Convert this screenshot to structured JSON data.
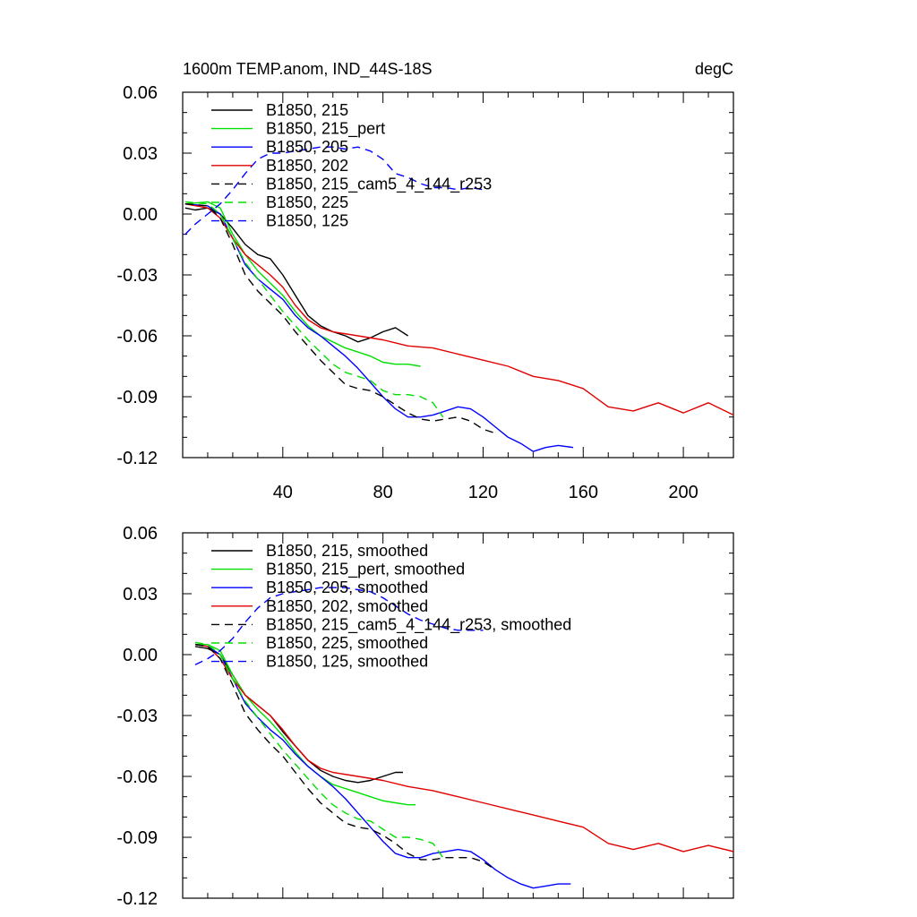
{
  "chart_data": [
    {
      "type": "line",
      "title": "1600m TEMP.anom, IND_44S-18S",
      "units": "degC",
      "xlabel": "",
      "ylabel": "",
      "xlim": [
        0,
        220
      ],
      "ylim": [
        -0.12,
        0.06
      ],
      "xticks": [
        40,
        80,
        120,
        160,
        200
      ],
      "xtick_labels": [
        "40",
        "80",
        "120",
        "160",
        "200"
      ],
      "yticks": [
        0.06,
        0.03,
        0.0,
        -0.03,
        -0.06,
        -0.09,
        -0.12
      ],
      "ytick_labels": [
        "0.06",
        "0.03",
        "0.00",
        "-0.03",
        "-0.06",
        "-0.09",
        "-0.12"
      ],
      "legend_position": "top-left",
      "grid": false,
      "series": [
        {
          "name": "B1850, 215",
          "color": "#000000",
          "dash": "solid",
          "x": [
            1,
            5,
            10,
            15,
            20,
            25,
            30,
            35,
            40,
            45,
            50,
            55,
            60,
            65,
            70,
            75,
            80,
            85,
            90
          ],
          "y": [
            0.003,
            0.002,
            0.003,
            0.0,
            -0.007,
            -0.015,
            -0.02,
            -0.022,
            -0.03,
            -0.04,
            -0.05,
            -0.055,
            -0.058,
            -0.06,
            -0.063,
            -0.061,
            -0.058,
            -0.056,
            -0.06
          ]
        },
        {
          "name": "B1850, 215_pert",
          "color": "#00e000",
          "dash": "solid",
          "x": [
            1,
            10,
            15,
            20,
            25,
            30,
            35,
            40,
            45,
            50,
            55,
            60,
            65,
            70,
            75,
            80,
            85,
            90,
            95
          ],
          "y": [
            0.005,
            0.006,
            0.003,
            -0.01,
            -0.02,
            -0.028,
            -0.034,
            -0.04,
            -0.048,
            -0.055,
            -0.06,
            -0.063,
            -0.066,
            -0.068,
            -0.07,
            -0.073,
            -0.074,
            -0.074,
            -0.075
          ]
        },
        {
          "name": "B1850, 205",
          "color": "#0000ff",
          "dash": "solid",
          "x": [
            1,
            10,
            15,
            20,
            25,
            30,
            35,
            40,
            45,
            50,
            55,
            60,
            65,
            70,
            75,
            80,
            85,
            90,
            95,
            100,
            105,
            110,
            115,
            120,
            125,
            130,
            135,
            140,
            145,
            150,
            156
          ],
          "y": [
            0.005,
            0.004,
            0.0,
            -0.012,
            -0.025,
            -0.032,
            -0.037,
            -0.042,
            -0.05,
            -0.056,
            -0.06,
            -0.065,
            -0.07,
            -0.076,
            -0.083,
            -0.09,
            -0.096,
            -0.1,
            -0.1,
            -0.099,
            -0.097,
            -0.095,
            -0.096,
            -0.1,
            -0.105,
            -0.11,
            -0.113,
            -0.117,
            -0.115,
            -0.114,
            -0.115
          ]
        },
        {
          "name": "B1850, 202",
          "color": "#e00000",
          "dash": "solid",
          "x": [
            1,
            10,
            15,
            20,
            25,
            30,
            35,
            40,
            45,
            50,
            55,
            60,
            70,
            80,
            90,
            100,
            110,
            120,
            130,
            140,
            150,
            160,
            170,
            180,
            190,
            200,
            210,
            220
          ],
          "y": [
            0.005,
            0.003,
            -0.002,
            -0.012,
            -0.02,
            -0.025,
            -0.03,
            -0.036,
            -0.045,
            -0.052,
            -0.056,
            -0.058,
            -0.06,
            -0.062,
            -0.065,
            -0.066,
            -0.069,
            -0.072,
            -0.075,
            -0.08,
            -0.082,
            -0.086,
            -0.095,
            -0.097,
            -0.093,
            -0.098,
            -0.093,
            -0.099
          ]
        },
        {
          "name": "B1850, 215_cam5_4_144_r253",
          "color": "#000000",
          "dash": "dashed",
          "x": [
            1,
            10,
            15,
            20,
            25,
            30,
            35,
            40,
            45,
            50,
            55,
            60,
            65,
            70,
            75,
            80,
            85,
            90,
            95,
            100,
            105,
            110,
            115,
            120,
            125
          ],
          "y": [
            0.005,
            0.004,
            -0.002,
            -0.015,
            -0.03,
            -0.038,
            -0.044,
            -0.05,
            -0.058,
            -0.065,
            -0.072,
            -0.078,
            -0.084,
            -0.086,
            -0.087,
            -0.09,
            -0.094,
            -0.098,
            -0.101,
            -0.102,
            -0.101,
            -0.1,
            -0.102,
            -0.106,
            -0.108
          ]
        },
        {
          "name": "B1850, 225",
          "color": "#00e000",
          "dash": "dashed",
          "x": [
            1,
            10,
            15,
            20,
            25,
            30,
            35,
            40,
            45,
            50,
            55,
            60,
            65,
            70,
            75,
            80,
            85,
            90,
            95,
            100,
            104
          ],
          "y": [
            0.006,
            0.005,
            0.0,
            -0.012,
            -0.024,
            -0.032,
            -0.04,
            -0.048,
            -0.055,
            -0.062,
            -0.068,
            -0.074,
            -0.078,
            -0.08,
            -0.082,
            -0.087,
            -0.089,
            -0.089,
            -0.09,
            -0.093,
            -0.1
          ]
        },
        {
          "name": "B1850, 125",
          "color": "#0000ff",
          "dash": "dashed",
          "x": [
            1,
            5,
            10,
            15,
            20,
            25,
            30,
            35,
            40,
            45,
            50,
            55,
            60,
            65,
            70,
            75,
            80,
            85,
            90,
            95,
            100,
            105,
            110,
            115,
            120
          ],
          "y": [
            -0.01,
            -0.005,
            0.0,
            0.005,
            0.012,
            0.02,
            0.027,
            0.03,
            0.03,
            0.031,
            0.032,
            0.033,
            0.033,
            0.032,
            0.033,
            0.031,
            0.027,
            0.02,
            0.018,
            0.015,
            0.013,
            0.013,
            0.012,
            0.013,
            0.012
          ]
        }
      ]
    },
    {
      "type": "line",
      "title": "",
      "xlabel": "",
      "ylabel": "",
      "xlim": [
        0,
        220
      ],
      "ylim": [
        -0.12,
        0.06
      ],
      "xticks": [
        40,
        80,
        120,
        160,
        200
      ],
      "xtick_labels": [],
      "yticks": [
        0.06,
        0.03,
        0.0,
        -0.03,
        -0.06,
        -0.09,
        -0.12
      ],
      "ytick_labels": [
        "0.06",
        "0.03",
        "0.00",
        "-0.03",
        "-0.06",
        "-0.09",
        "-0.12"
      ],
      "legend_position": "top-left",
      "grid": false,
      "series": [
        {
          "name": "B1850, 215, smoothed",
          "color": "#000000",
          "dash": "solid",
          "x": [
            5,
            10,
            15,
            20,
            25,
            30,
            35,
            40,
            45,
            50,
            55,
            60,
            65,
            70,
            75,
            80,
            85,
            88
          ],
          "y": [
            0.004,
            0.003,
            0.0,
            -0.01,
            -0.02,
            -0.025,
            -0.03,
            -0.038,
            -0.045,
            -0.052,
            -0.057,
            -0.06,
            -0.062,
            -0.063,
            -0.062,
            -0.06,
            -0.058,
            -0.058
          ]
        },
        {
          "name": "B1850, 215_pert, smoothed",
          "color": "#00e000",
          "dash": "solid",
          "x": [
            5,
            10,
            15,
            20,
            25,
            30,
            35,
            40,
            45,
            50,
            55,
            60,
            65,
            70,
            75,
            80,
            85,
            90,
            93
          ],
          "y": [
            0.005,
            0.005,
            0.002,
            -0.01,
            -0.02,
            -0.027,
            -0.033,
            -0.04,
            -0.048,
            -0.055,
            -0.06,
            -0.064,
            -0.066,
            -0.068,
            -0.07,
            -0.072,
            -0.073,
            -0.074,
            -0.074
          ]
        },
        {
          "name": "B1850, 205, smoothed",
          "color": "#0000ff",
          "dash": "solid",
          "x": [
            5,
            10,
            15,
            20,
            25,
            30,
            35,
            40,
            45,
            50,
            55,
            60,
            65,
            70,
            75,
            80,
            85,
            90,
            95,
            100,
            105,
            110,
            115,
            120,
            125,
            130,
            135,
            140,
            145,
            150,
            155
          ],
          "y": [
            0.005,
            0.004,
            0.0,
            -0.012,
            -0.024,
            -0.031,
            -0.037,
            -0.042,
            -0.049,
            -0.055,
            -0.06,
            -0.065,
            -0.071,
            -0.078,
            -0.085,
            -0.092,
            -0.098,
            -0.1,
            -0.1,
            -0.098,
            -0.097,
            -0.096,
            -0.097,
            -0.101,
            -0.106,
            -0.11,
            -0.113,
            -0.115,
            -0.114,
            -0.113,
            -0.113
          ]
        },
        {
          "name": "B1850, 202, smoothed",
          "color": "#e00000",
          "dash": "solid",
          "x": [
            5,
            10,
            15,
            20,
            25,
            30,
            35,
            40,
            45,
            50,
            55,
            60,
            70,
            80,
            90,
            100,
            110,
            120,
            130,
            140,
            150,
            160,
            170,
            180,
            190,
            200,
            210,
            220
          ],
          "y": [
            0.005,
            0.004,
            -0.002,
            -0.012,
            -0.02,
            -0.025,
            -0.03,
            -0.037,
            -0.045,
            -0.052,
            -0.056,
            -0.058,
            -0.06,
            -0.062,
            -0.065,
            -0.067,
            -0.07,
            -0.073,
            -0.076,
            -0.079,
            -0.082,
            -0.085,
            -0.093,
            -0.096,
            -0.093,
            -0.097,
            -0.094,
            -0.097
          ]
        },
        {
          "name": "B1850, 215_cam5_4_144_r253, smoothed",
          "color": "#000000",
          "dash": "dashed",
          "x": [
            5,
            10,
            15,
            20,
            25,
            30,
            35,
            40,
            45,
            50,
            55,
            60,
            65,
            70,
            75,
            80,
            85,
            90,
            95,
            100,
            105,
            110,
            115,
            120,
            125
          ],
          "y": [
            0.005,
            0.004,
            -0.002,
            -0.015,
            -0.029,
            -0.037,
            -0.044,
            -0.05,
            -0.058,
            -0.066,
            -0.073,
            -0.078,
            -0.083,
            -0.085,
            -0.086,
            -0.089,
            -0.093,
            -0.098,
            -0.101,
            -0.101,
            -0.1,
            -0.1,
            -0.1,
            -0.102,
            -0.106
          ]
        },
        {
          "name": "B1850, 225, smoothed",
          "color": "#00e000",
          "dash": "dashed",
          "x": [
            5,
            10,
            15,
            20,
            25,
            30,
            35,
            40,
            45,
            50,
            55,
            60,
            65,
            70,
            75,
            80,
            85,
            90,
            95,
            100,
            104
          ],
          "y": [
            0.006,
            0.005,
            0.0,
            -0.012,
            -0.023,
            -0.031,
            -0.039,
            -0.047,
            -0.054,
            -0.061,
            -0.068,
            -0.074,
            -0.078,
            -0.081,
            -0.082,
            -0.086,
            -0.09,
            -0.09,
            -0.091,
            -0.093,
            -0.1
          ]
        },
        {
          "name": "B1850, 125, smoothed",
          "color": "#0000ff",
          "dash": "dashed",
          "x": [
            5,
            10,
            15,
            20,
            25,
            30,
            35,
            40,
            45,
            50,
            55,
            60,
            65,
            70,
            75,
            80,
            85,
            90,
            95,
            100,
            105,
            110,
            115,
            120
          ],
          "y": [
            -0.005,
            -0.002,
            0.002,
            0.008,
            0.016,
            0.023,
            0.028,
            0.03,
            0.031,
            0.032,
            0.033,
            0.033,
            0.033,
            0.032,
            0.031,
            0.028,
            0.024,
            0.02,
            0.017,
            0.015,
            0.013,
            0.012,
            0.012,
            0.012
          ]
        }
      ]
    }
  ]
}
